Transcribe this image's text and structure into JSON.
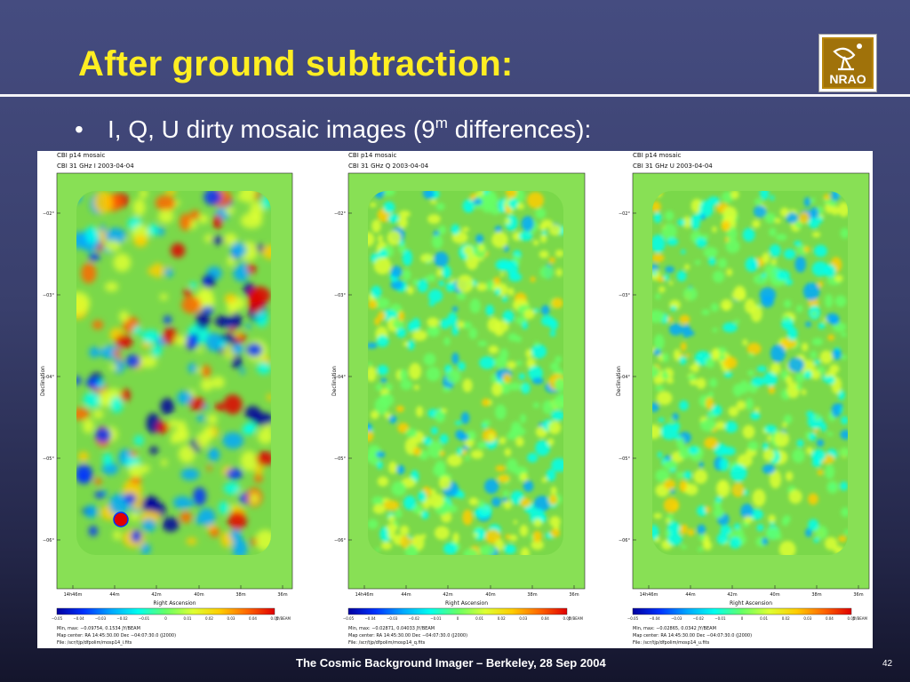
{
  "slide": {
    "title": "After ground subtraction:",
    "bullet_pre": "I, Q, U dirty mosaic images (9",
    "bullet_sup": "m",
    "bullet_post": " differences):",
    "footer": "The Cosmic Background Imager – Berkeley, 28 Sep 2004",
    "page_number": "42",
    "logo_text": "NRAO"
  },
  "colors": {
    "title": "#ffee22",
    "map_background": "#88e055",
    "colormap": [
      "#0000a0",
      "#0033ff",
      "#00a8ff",
      "#00ffee",
      "#66ff66",
      "#ddff33",
      "#ffcc00",
      "#ff6600",
      "#e00000"
    ]
  },
  "panels": [
    {
      "header": "CBI p14 mosaic",
      "subheader": "CBI 31 GHz I 2003-04-04",
      "stats": "Min, max: −0.09754, 0.1534 JY/BEAM",
      "center": "Map center: RA 14:45:30.00 Dec −04:07:30.0 (J2000)",
      "file": "File: /scr/tjp/dfpolim/mosp14_i.fits",
      "colorbar_ticks": [
        "−0.05",
        "−0.04",
        "−0.03",
        "−0.02",
        "−0.01",
        "0",
        "0.01",
        "0.02",
        "0.03",
        "0.04",
        "0.05"
      ]
    },
    {
      "header": "CBI p14 mosaic",
      "subheader": "CBI 31 GHz Q 2003-04-04",
      "stats": "Min, max: −0.02871, 0.04033 JY/BEAM",
      "center": "Map center: RA 14:45:30.00 Dec −04:07:30.0 (J2000)",
      "file": "File: /scr/tjp/dfpolim/mosp14_q.fits",
      "colorbar_ticks": [
        "−0.05",
        "−0.04",
        "−0.03",
        "−0.02",
        "−0.01",
        "0",
        "0.01",
        "0.02",
        "0.03",
        "0.04",
        "0.05"
      ]
    },
    {
      "header": "CBI p14 mosaic",
      "subheader": "CBI 31 GHz U 2003-04-04",
      "stats": "Min, max: −0.02865, 0.0342 JY/BEAM",
      "center": "Map center: RA 14:45:30.00 Dec −04:07:30.0 (J2000)",
      "file": "File: /scr/tjp/dfpolim/mosp14_u.fits",
      "colorbar_ticks": [
        "−0.05",
        "−0.04",
        "−0.03",
        "−0.02",
        "−0.01",
        "0",
        "0.01",
        "0.02",
        "0.03",
        "0.04",
        "0.05"
      ]
    }
  ],
  "axes": {
    "xlabel": "Right Ascension",
    "ylabel": "Declination",
    "ra_ticks": [
      "14h46m",
      "44m",
      "42m",
      "40m",
      "38m",
      "36m"
    ],
    "dec_ticks": [
      "−02°",
      "−03°",
      "−04°",
      "−05°",
      "−06°"
    ],
    "colorbar_unit": "JY/BEAM"
  }
}
